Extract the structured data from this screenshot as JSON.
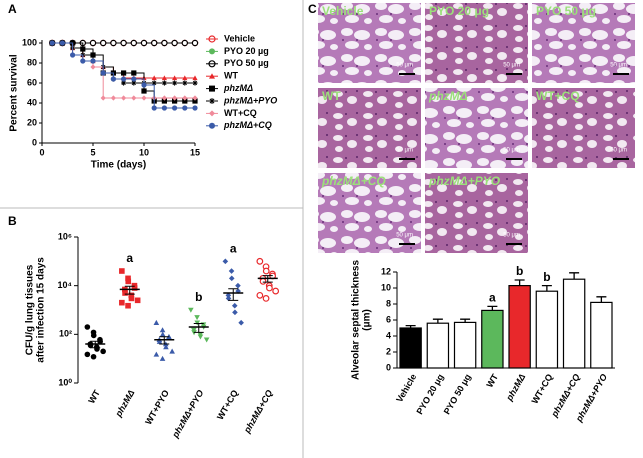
{
  "chart_data": [
    {
      "type": "survival",
      "panel": "A",
      "xlabel": "Time (days)",
      "ylabel": "Percent survival",
      "xlim": [
        0,
        15
      ],
      "xticks": [
        0,
        5,
        10,
        15
      ],
      "ylim": [
        0,
        100
      ],
      "yticks": [
        0,
        20,
        40,
        60,
        80,
        100
      ],
      "x": [
        1,
        2,
        3,
        4,
        5,
        6,
        7,
        8,
        9,
        10,
        11,
        12,
        13,
        14,
        15
      ],
      "series": [
        {
          "name": "Vehicle",
          "color": "#e8282b",
          "marker": "circle-open",
          "values": [
            100,
            100,
            100,
            100,
            100,
            100,
            100,
            100,
            100,
            100,
            100,
            100,
            100,
            100,
            100
          ]
        },
        {
          "name": "PYO 20 µg",
          "color": "#5cb85c",
          "marker": "circle",
          "values": [
            100,
            100,
            100,
            100,
            100,
            100,
            100,
            100,
            100,
            100,
            100,
            100,
            100,
            100,
            100
          ]
        },
        {
          "name": "PYO 50 µg",
          "color": "#000000",
          "marker": "circle-open",
          "values": [
            100,
            100,
            100,
            100,
            100,
            100,
            100,
            100,
            100,
            100,
            100,
            100,
            100,
            100,
            100
          ]
        },
        {
          "name": "WT",
          "color": "#e8282b",
          "marker": "triangle",
          "values": [
            100,
            100,
            95,
            88,
            82,
            76,
            70,
            65,
            65,
            65,
            65,
            65,
            65,
            65,
            65
          ]
        },
        {
          "name": "phzMΔ",
          "color": "#000000",
          "marker": "square",
          "values": [
            100,
            100,
            100,
            94,
            88,
            70,
            70,
            70,
            70,
            52,
            42,
            42,
            42,
            42,
            42
          ]
        },
        {
          "name": "phzMΔ+PYO",
          "color": "#000000",
          "marker": "star",
          "values": [
            100,
            100,
            95,
            88,
            82,
            76,
            64,
            60,
            60,
            60,
            60,
            60,
            60,
            60,
            60
          ]
        },
        {
          "name": "WT+CQ",
          "color": "#f08a9a",
          "marker": "diamond",
          "values": [
            100,
            100,
            88,
            82,
            76,
            45,
            45,
            45,
            45,
            45,
            45,
            45,
            45,
            45,
            45
          ]
        },
        {
          "name": "phzMΔ+CQ",
          "color": "#3b5ba9",
          "marker": "circle",
          "values": [
            100,
            100,
            88,
            82,
            82,
            70,
            64,
            64,
            64,
            58,
            35,
            35,
            35,
            35,
            35
          ]
        }
      ]
    },
    {
      "type": "dotplot",
      "panel": "B",
      "ylabel": [
        "CFU/g lung tissues",
        "after infection 15 days"
      ],
      "log": true,
      "ylim": [
        1,
        1000000
      ],
      "yticks": [
        {
          "value": 1,
          "label": "10⁰"
        },
        {
          "value": 100,
          "label": "10²"
        },
        {
          "value": 10000,
          "label": "10⁴"
        },
        {
          "value": 1000000,
          "label": "10⁶"
        }
      ],
      "categories": [
        "WT",
        "phzMΔ",
        "WT+PYO",
        "phzMΔ+PYO",
        "WT+CQ",
        "phzMΔ+CQ"
      ],
      "colors": [
        "#000000",
        "#e8282b",
        "#3b5ba9",
        "#5cb85c",
        "#3b5ba9",
        "#e8282b"
      ],
      "markers": [
        "circle",
        "square",
        "triangle",
        "triangle-down",
        "diamond",
        "circle-open"
      ],
      "points": [
        [
          200,
          120,
          90,
          60,
          50,
          40,
          35,
          30,
          25,
          20,
          15,
          12
        ],
        [
          40000,
          20000,
          15000,
          10000,
          8000,
          7000,
          5000,
          4000,
          3000,
          2500,
          2000,
          1500
        ],
        [
          300,
          150,
          100,
          80,
          70,
          60,
          50,
          40,
          30,
          20,
          15,
          10
        ],
        [
          1000,
          500,
          300,
          250,
          200,
          150,
          120,
          100,
          80,
          60
        ],
        [
          100000,
          40000,
          20000,
          10000,
          6000,
          4000,
          3000,
          1500,
          800,
          300
        ],
        [
          100000,
          60000,
          40000,
          30000,
          25000,
          20000,
          15000,
          10000,
          8000,
          6000,
          4000,
          3000
        ]
      ],
      "means": [
        40,
        7000,
        60,
        200,
        5000,
        20000
      ],
      "errors": [
        12,
        2500,
        20,
        80,
        2500,
        6000
      ],
      "letters": [
        null,
        "a",
        null,
        "b",
        "a",
        null
      ]
    },
    {
      "type": "bar",
      "ylabel": [
        "Alveolar septal thickness",
        "(μm)"
      ],
      "ylim": [
        0,
        12
      ],
      "yticks": [
        0,
        2,
        4,
        6,
        8,
        10,
        12
      ],
      "categories": [
        "Vehicle",
        "PYO 20 μg",
        "PYO 50 μg",
        "WT",
        "phzMΔ",
        "WT+CQ",
        "phzMΔ+CQ",
        "phzMΔ+PYO"
      ],
      "values": [
        5.0,
        5.6,
        5.7,
        7.2,
        10.3,
        9.6,
        11.1,
        8.2
      ],
      "errors": [
        0.3,
        0.5,
        0.4,
        0.5,
        0.7,
        0.7,
        0.8,
        0.7
      ],
      "colors": [
        "#000000",
        "#ffffff",
        "#ffffff",
        "#5cb85c",
        "#e8282b",
        "#ffffff",
        "#ffffff",
        "#ffffff"
      ],
      "letters": [
        null,
        null,
        null,
        "a",
        "b",
        "b",
        null,
        null
      ]
    }
  ],
  "histology": {
    "panel": "C",
    "scale_label": "50 μm",
    "panels": [
      "Vehicle",
      "PYO 20 μg",
      "PYO 50 μg",
      "WT",
      "phzMΔ",
      "WT+CQ",
      "phzMΔ+CQ",
      "phzMΔ+PYO"
    ]
  }
}
